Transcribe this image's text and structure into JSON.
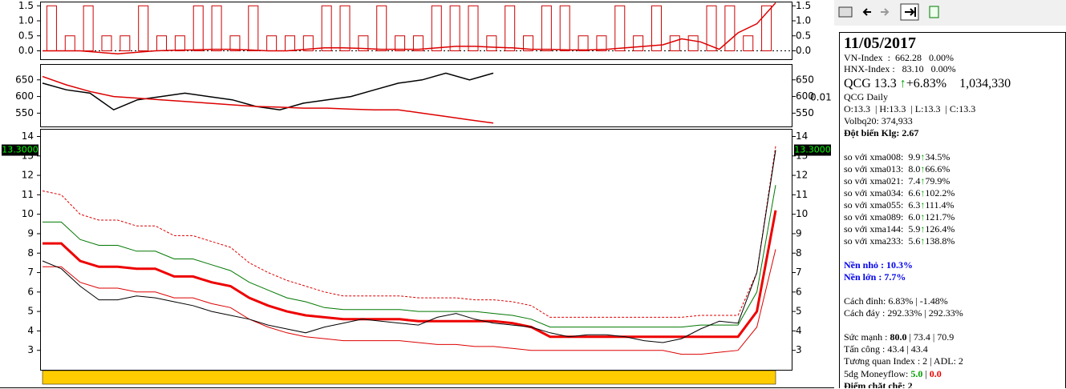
{
  "chart_data": [
    {
      "type": "line",
      "ylim": [
        -0.28,
        1.64
      ],
      "yticks": [
        {
          "value": 1.5,
          "label": "1.5"
        },
        {
          "value": 1,
          "label": "1.0"
        },
        0.5,
        {
          "value": 0,
          "label": "0.0"
        }
      ],
      "bars": {
        "color": "#cc0000",
        "values": [
          1.5,
          0.5,
          1.5,
          0.5,
          0.5,
          1.5,
          0.5,
          0.5,
          1.5,
          1.5,
          0.5,
          1.5,
          0.5,
          0.5,
          0.5,
          1.5,
          1.5,
          0.5,
          1.5,
          0.5,
          0.5,
          1.5,
          1.5,
          1.5,
          0.5,
          1.5,
          0.5,
          1.5,
          1.5,
          0.5,
          0.5,
          1.5,
          0.5,
          1.5,
          0.5,
          0.5,
          1.5,
          1.5,
          0.5,
          1.5
        ]
      },
      "series": [
        {
          "color": "#dd0000",
          "values": [
            0,
            0,
            0,
            -0.05,
            -0.1,
            -0.05,
            0,
            0.02,
            0.03,
            0.05,
            0.05,
            0.03,
            0,
            0,
            0.05,
            0.1,
            0.1,
            0.08,
            0.05,
            0.05,
            0.05,
            0.1,
            0.15,
            0.15,
            0.12,
            0.1,
            0.05,
            0.05,
            0.03,
            0.03,
            0.05,
            0.1,
            0.15,
            0.2,
            0.4,
            0.3,
            0.05,
            0.6,
            0.9,
            1.6
          ]
        }
      ]
    },
    {
      "type": "line",
      "ylim": [
        510,
        697.5
      ],
      "yticks": [
        550,
        600,
        650
      ],
      "right_label": "0.01",
      "series": [
        {
          "color": "#000000",
          "values": [
            640,
            620,
            610,
            560,
            590,
            600,
            610,
            600,
            590,
            570,
            560,
            580,
            590,
            600,
            620,
            640,
            650,
            670,
            650,
            670
          ]
        },
        {
          "color": "#dd0000",
          "values": [
            660,
            635,
            615,
            600,
            595,
            590,
            585,
            580,
            575,
            570,
            568,
            565,
            565,
            562,
            560,
            560,
            550,
            540,
            530,
            520
          ]
        }
      ]
    },
    {
      "type": "line",
      "ylim": [
        2.0,
        14.35
      ],
      "yticks": [
        3,
        4,
        5,
        6,
        7,
        8,
        9,
        10,
        11,
        12,
        13,
        14
      ],
      "last_label": "13.3000",
      "series": [
        {
          "color": "#dd0000",
          "width": 1,
          "dash": true,
          "values": [
            11.2,
            11.0,
            10.0,
            9.7,
            9.7,
            9.4,
            9.4,
            8.9,
            8.9,
            8.6,
            8.3,
            7.5,
            7.0,
            6.6,
            6.3,
            6.0,
            5.8,
            5.8,
            5.8,
            5.8,
            5.7,
            5.7,
            5.7,
            5.6,
            5.6,
            5.5,
            5.3,
            4.7,
            4.7,
            4.7,
            4.7,
            4.7,
            4.7,
            4.7,
            4.7,
            4.8,
            4.8,
            4.8,
            7.0,
            13.5
          ]
        },
        {
          "color": "#007700",
          "width": 1,
          "values": [
            9.6,
            9.6,
            8.7,
            8.4,
            8.4,
            8.1,
            8.1,
            7.7,
            7.7,
            7.4,
            7.1,
            6.5,
            6.1,
            5.7,
            5.5,
            5.2,
            5.1,
            5.1,
            5.1,
            5.1,
            5.0,
            5.0,
            5.0,
            5.0,
            4.9,
            4.8,
            4.6,
            4.2,
            4.2,
            4.2,
            4.2,
            4.2,
            4.2,
            4.2,
            4.2,
            4.3,
            4.3,
            4.3,
            6.0,
            11.5
          ]
        },
        {
          "color": "#ee0000",
          "width": 3,
          "values": [
            8.5,
            8.5,
            7.6,
            7.3,
            7.3,
            7.2,
            7.2,
            6.8,
            6.8,
            6.5,
            6.3,
            5.7,
            5.3,
            5.0,
            4.8,
            4.7,
            4.6,
            4.6,
            4.6,
            4.6,
            4.5,
            4.5,
            4.5,
            4.5,
            4.5,
            4.4,
            4.2,
            3.7,
            3.7,
            3.7,
            3.7,
            3.7,
            3.7,
            3.7,
            3.7,
            3.7,
            3.7,
            3.7,
            5.0,
            10.2
          ]
        },
        {
          "color": "#dd0000",
          "width": 1,
          "values": [
            7.3,
            7.3,
            6.5,
            6.2,
            6.2,
            6.0,
            6.0,
            5.7,
            5.7,
            5.4,
            5.2,
            4.6,
            4.2,
            3.9,
            3.7,
            3.6,
            3.5,
            3.5,
            3.5,
            3.5,
            3.4,
            3.3,
            3.3,
            3.2,
            3.2,
            3.1,
            3.0,
            3.0,
            3.0,
            3.0,
            3.0,
            3.0,
            3.0,
            3.0,
            2.8,
            2.8,
            2.9,
            3.0,
            4.2,
            8.2
          ]
        },
        {
          "color": "#000000",
          "width": 1,
          "values": [
            7.6,
            7.2,
            6.3,
            5.6,
            5.6,
            5.8,
            5.7,
            5.5,
            5.3,
            5.0,
            4.8,
            4.6,
            4.3,
            4.1,
            3.9,
            4.2,
            4.4,
            4.6,
            4.5,
            4.4,
            4.3,
            4.7,
            4.9,
            4.6,
            4.4,
            4.3,
            4.2,
            3.9,
            3.7,
            3.8,
            3.8,
            3.7,
            3.5,
            3.4,
            3.6,
            4.1,
            4.5,
            4.4,
            7.0,
            13.3
          ]
        }
      ]
    }
  ],
  "info": {
    "date": "11/05/2017",
    "lines": [
      [
        {
          "text": "VN-Index  :  662.28   0.00%"
        }
      ],
      [
        {
          "text": "HNX-Index :   83.10   0.00%"
        }
      ],
      [
        {
          "text": "QCG 13.3 "
        },
        {
          "text": "↑",
          "color": "#00a000"
        },
        {
          "text": "+6.83%    1,034,330"
        }
      ],
      [
        {
          "text": "QCG Daily"
        }
      ],
      [
        {
          "text": "O:13.3  | H:13.3  | L:13.3  | C:13.3"
        }
      ],
      [
        {
          "text": "Volbq20: 374,933"
        }
      ],
      [
        {
          "text": "Đột biến Klg: 2.67",
          "bold": true
        }
      ],
      [
        {
          "text": "so với xma008:  9.9"
        },
        {
          "text": "↑",
          "color": "#00a000"
        },
        {
          "text": "34.5%"
        }
      ],
      [
        {
          "text": "so với xma013:  8.0"
        },
        {
          "text": "↑",
          "color": "#00a000"
        },
        {
          "text": "66.6%"
        }
      ],
      [
        {
          "text": "so với xma021:  7.4"
        },
        {
          "text": "↑",
          "color": "#00a000"
        },
        {
          "text": "79.9%"
        }
      ],
      [
        {
          "text": "so với xma034:  6.6"
        },
        {
          "text": "↑",
          "color": "#00a000"
        },
        {
          "text": "102.2%"
        }
      ],
      [
        {
          "text": "so với xma055:  6.3"
        },
        {
          "text": "↑",
          "color": "#00a000"
        },
        {
          "text": "111.4%"
        }
      ],
      [
        {
          "text": "so với xma089:  6.0"
        },
        {
          "text": "↑",
          "color": "#00a000"
        },
        {
          "text": "121.7%"
        }
      ],
      [
        {
          "text": "so với xma144:  5.9"
        },
        {
          "text": "↑",
          "color": "#00a000"
        },
        {
          "text": "126.4%"
        }
      ],
      [
        {
          "text": "so với xma233:  5.6"
        },
        {
          "text": "↑",
          "color": "#00a000"
        },
        {
          "text": "138.8%"
        }
      ],
      [
        {
          "text": "Nền nhỏ : 10.3%",
          "color": "#0000ee",
          "bold": true
        }
      ],
      [
        {
          "text": "Nền lớn : 7.7%",
          "color": "#0000ee",
          "bold": true
        }
      ],
      [
        {
          "text": "Cách đỉnh: 6.83% | -1.48%"
        }
      ],
      [
        {
          "text": "Cách đáy : 292.33% | 292.33%"
        }
      ],
      [
        {
          "text": "Sức mạnh : "
        },
        {
          "text": "80.0",
          "bold": true
        },
        {
          "text": " | 73.4 | 70.9"
        }
      ],
      [
        {
          "text": "Tấn công : 43.4 | 43.4"
        }
      ],
      [
        {
          "text": "Tương quan Index : 2 | ADL: 2"
        }
      ],
      [
        {
          "text": "5dg Moneyflow: "
        },
        {
          "text": "5.0",
          "color": "#00a000",
          "bold": true
        },
        {
          "text": " | "
        },
        {
          "text": "0.0",
          "color": "#ee0000",
          "bold": true
        }
      ],
      [
        {
          "text": "Điểm chặt chẽ: 2",
          "bold": true
        }
      ]
    ]
  }
}
